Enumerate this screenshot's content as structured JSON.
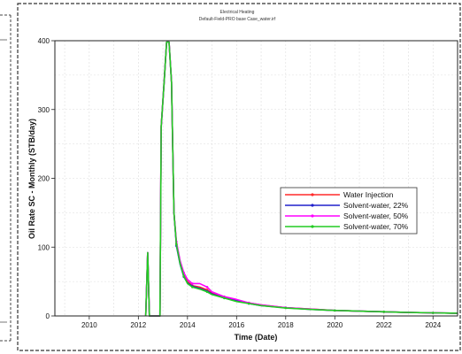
{
  "chart_data": {
    "type": "line",
    "title": "Electrical Heating",
    "subtitle": "Default-Field-PRO base Case_water.irf",
    "xlabel": "Time (Date)",
    "ylabel": "Oil Rate SC - Monthly (STB/day)",
    "xlim": [
      2008.6,
      2025.0
    ],
    "ylim": [
      0,
      400
    ],
    "xticks": [
      2010,
      2012,
      2014,
      2016,
      2018,
      2020,
      2022,
      2024
    ],
    "yticks": [
      0,
      100,
      200,
      300,
      400
    ],
    "grid": true,
    "legend_position": "center-right",
    "series": [
      {
        "name": "Water Injection",
        "color": "#ff2a2a",
        "marker": "circle",
        "points": [
          [
            2012.3,
            0
          ],
          [
            2012.38,
            92
          ],
          [
            2012.45,
            0
          ],
          [
            2012.88,
            0
          ],
          [
            2012.93,
            275
          ],
          [
            2013.05,
            340
          ],
          [
            2013.15,
            398
          ],
          [
            2013.25,
            398
          ],
          [
            2013.35,
            340
          ],
          [
            2013.45,
            150
          ],
          [
            2013.55,
            105
          ],
          [
            2013.7,
            78
          ],
          [
            2013.85,
            60
          ],
          [
            2014.0,
            50
          ],
          [
            2014.2,
            44
          ],
          [
            2014.5,
            42
          ],
          [
            2014.8,
            38
          ],
          [
            2015.0,
            33
          ],
          [
            2015.5,
            27
          ],
          [
            2016.0,
            23
          ],
          [
            2016.5,
            19
          ],
          [
            2017.0,
            16
          ],
          [
            2018.0,
            12
          ],
          [
            2019.0,
            10
          ],
          [
            2020.0,
            8
          ],
          [
            2021.0,
            7
          ],
          [
            2022.0,
            6
          ],
          [
            2023.0,
            5
          ],
          [
            2024.0,
            4.5
          ],
          [
            2025.0,
            4
          ]
        ]
      },
      {
        "name": "Solvent-water, 22%",
        "color": "#2020cc",
        "marker": "circle",
        "points": [
          [
            2012.3,
            0
          ],
          [
            2012.38,
            92
          ],
          [
            2012.45,
            0
          ],
          [
            2012.88,
            0
          ],
          [
            2012.93,
            275
          ],
          [
            2013.05,
            340
          ],
          [
            2013.15,
            398
          ],
          [
            2013.25,
            398
          ],
          [
            2013.35,
            340
          ],
          [
            2013.45,
            150
          ],
          [
            2013.55,
            102
          ],
          [
            2013.7,
            75
          ],
          [
            2013.85,
            57
          ],
          [
            2014.0,
            48
          ],
          [
            2014.2,
            43
          ],
          [
            2014.5,
            40
          ],
          [
            2014.8,
            36
          ],
          [
            2015.0,
            32
          ],
          [
            2015.5,
            26
          ],
          [
            2016.0,
            22
          ],
          [
            2016.5,
            18
          ],
          [
            2017.0,
            15
          ],
          [
            2018.0,
            12
          ],
          [
            2019.0,
            9.5
          ],
          [
            2020.0,
            8
          ],
          [
            2021.0,
            7
          ],
          [
            2022.0,
            6
          ],
          [
            2023.0,
            5
          ],
          [
            2024.0,
            4.5
          ],
          [
            2025.0,
            4
          ]
        ]
      },
      {
        "name": "Solvent-water, 50%",
        "color": "#ff00ff",
        "marker": "circle",
        "points": [
          [
            2012.3,
            0
          ],
          [
            2012.38,
            92
          ],
          [
            2012.45,
            0
          ],
          [
            2012.88,
            0
          ],
          [
            2012.93,
            275
          ],
          [
            2013.05,
            340
          ],
          [
            2013.15,
            398
          ],
          [
            2013.25,
            398
          ],
          [
            2013.35,
            340
          ],
          [
            2013.45,
            150
          ],
          [
            2013.55,
            108
          ],
          [
            2013.7,
            80
          ],
          [
            2013.85,
            63
          ],
          [
            2014.0,
            53
          ],
          [
            2014.2,
            47
          ],
          [
            2014.5,
            47
          ],
          [
            2014.8,
            42
          ],
          [
            2015.0,
            35
          ],
          [
            2015.5,
            28
          ],
          [
            2016.0,
            24
          ],
          [
            2016.5,
            19
          ],
          [
            2017.0,
            16
          ],
          [
            2018.0,
            12
          ],
          [
            2019.0,
            10
          ],
          [
            2020.0,
            8
          ],
          [
            2021.0,
            7
          ],
          [
            2022.0,
            6
          ],
          [
            2023.0,
            5
          ],
          [
            2024.0,
            4.5
          ],
          [
            2025.0,
            4
          ]
        ]
      },
      {
        "name": "Solvent-water, 70%",
        "color": "#22cc22",
        "marker": "circle",
        "points": [
          [
            2012.3,
            0
          ],
          [
            2012.38,
            92
          ],
          [
            2012.45,
            0
          ],
          [
            2012.88,
            0
          ],
          [
            2012.93,
            275
          ],
          [
            2013.05,
            340
          ],
          [
            2013.15,
            398
          ],
          [
            2013.25,
            398
          ],
          [
            2013.35,
            340
          ],
          [
            2013.45,
            150
          ],
          [
            2013.55,
            104
          ],
          [
            2013.7,
            76
          ],
          [
            2013.85,
            58
          ],
          [
            2014.0,
            47
          ],
          [
            2014.2,
            42
          ],
          [
            2014.5,
            39
          ],
          [
            2014.8,
            35
          ],
          [
            2015.0,
            31
          ],
          [
            2015.5,
            26
          ],
          [
            2016.0,
            21
          ],
          [
            2016.5,
            18
          ],
          [
            2017.0,
            15
          ],
          [
            2018.0,
            11.5
          ],
          [
            2019.0,
            9.5
          ],
          [
            2020.0,
            8
          ],
          [
            2021.0,
            7
          ],
          [
            2022.0,
            6
          ],
          [
            2023.0,
            5
          ],
          [
            2024.0,
            4.5
          ],
          [
            2025.0,
            4
          ]
        ]
      }
    ]
  }
}
